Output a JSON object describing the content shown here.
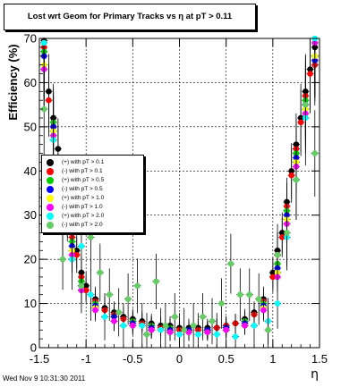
{
  "footer": "Wed Nov  9 10:31:30 2011",
  "chart_data": {
    "type": "scatter",
    "title": "Lost wrt Geom for Primary Tracks vs   η at pT > 0.11",
    "xlabel": "η",
    "ylabel": "Efficiency (%)",
    "xlim": [
      -1.5,
      1.5
    ],
    "ylim": [
      0,
      70
    ],
    "xticks": [
      "-1.5",
      "-1",
      "-0.5",
      "0",
      "0.5",
      "1",
      "1.5"
    ],
    "yticks": [
      "0",
      "10",
      "20",
      "30",
      "40",
      "50",
      "60",
      "70"
    ],
    "grid": true,
    "legend_position": "center-left",
    "series": [
      {
        "name": "(+) with pT > 0.1",
        "color": "#000000",
        "x": [
          -1.45,
          -1.4,
          -1.35,
          -1.3,
          -1.25,
          -1.2,
          -1.15,
          -1.1,
          -1.05,
          -1.0,
          -0.9,
          -0.8,
          -0.7,
          -0.6,
          -0.5,
          -0.4,
          -0.3,
          -0.2,
          -0.1,
          0.0,
          0.1,
          0.2,
          0.3,
          0.4,
          0.5,
          0.6,
          0.7,
          0.8,
          0.9,
          1.0,
          1.05,
          1.1,
          1.15,
          1.2,
          1.25,
          1.3,
          1.35,
          1.4,
          1.45
        ],
        "y": [
          69.5,
          58,
          52,
          45,
          35,
          30,
          26,
          22,
          17,
          14,
          11,
          9,
          8,
          7,
          6.5,
          6,
          5.5,
          5,
          5,
          4.5,
          4.5,
          4.5,
          4.5,
          4.5,
          5,
          5.5,
          6.5,
          8,
          11,
          17,
          22,
          26,
          33,
          40,
          46,
          52,
          58,
          63,
          68
        ]
      },
      {
        "name": "(-) with pT > 0.1",
        "color": "#ff0000",
        "x": [
          -1.45,
          -1.4,
          -1.35,
          -1.3,
          -1.25,
          -1.2,
          -1.15,
          -1.1,
          -1.05,
          -1.0,
          -0.9,
          -0.8,
          -0.7,
          -0.6,
          -0.5,
          -0.4,
          -0.3,
          -0.2,
          -0.1,
          0.0,
          0.1,
          0.2,
          0.3,
          0.4,
          0.5,
          0.6,
          0.7,
          0.8,
          0.9,
          1.0,
          1.05,
          1.1,
          1.15,
          1.2,
          1.25,
          1.3,
          1.35,
          1.4,
          1.45
        ],
        "y": [
          68,
          56,
          50,
          43,
          34,
          29,
          25,
          21,
          16,
          13,
          10.5,
          8.5,
          7.5,
          6.5,
          6,
          5.5,
          5,
          4.5,
          4.5,
          4,
          4,
          4,
          4,
          4.5,
          5,
          5.5,
          6,
          7.5,
          10.5,
          16,
          21,
          25,
          32,
          39,
          45,
          51,
          57,
          62,
          64
        ]
      },
      {
        "name": "(+) with pT > 0.5",
        "color": "#00cc00",
        "x": [
          -1.45,
          -1.35,
          -1.25,
          -1.15,
          -1.05,
          -0.9,
          -0.7,
          -0.5,
          -0.3,
          -0.1,
          0.1,
          0.3,
          0.5,
          0.7,
          0.9,
          1.05,
          1.15,
          1.25,
          1.35,
          1.45
        ],
        "y": [
          67,
          51,
          33,
          24,
          15,
          10,
          7,
          6,
          5,
          4.5,
          4,
          4,
          4.5,
          6,
          10,
          19,
          31,
          44,
          56,
          66
        ]
      },
      {
        "name": "(-) with pT > 0.5",
        "color": "#0000ff",
        "x": [
          -1.45,
          -1.35,
          -1.25,
          -1.15,
          -1.05,
          -0.9,
          -0.7,
          -0.5,
          -0.3,
          -0.1,
          0.1,
          0.3,
          0.5,
          0.7,
          0.9,
          1.05,
          1.15,
          1.25,
          1.35,
          1.45
        ],
        "y": [
          66,
          50,
          32,
          23,
          14,
          9.5,
          7,
          5.5,
          4.5,
          4,
          4,
          4,
          4.5,
          5.5,
          9.5,
          18,
          30,
          43,
          55,
          65
        ]
      },
      {
        "name": "(+) with pT > 1.0",
        "color": "#ffff00",
        "x": [
          -1.45,
          -1.35,
          -1.25,
          -1.15,
          -1.05,
          -0.9,
          -0.7,
          -0.5,
          -0.3,
          -0.1,
          0.1,
          0.3,
          0.5,
          0.7,
          0.9,
          1.05,
          1.15,
          1.25,
          1.35,
          1.45
        ],
        "y": [
          64,
          49,
          31,
          22,
          13,
          9,
          6,
          5,
          4,
          3.5,
          3.5,
          3.5,
          4,
          5,
          9,
          17,
          29,
          42,
          54,
          66
        ]
      },
      {
        "name": "(-) with pT > 1.0",
        "color": "#ff00ff",
        "x": [
          -1.45,
          -1.35,
          -1.25,
          -1.15,
          -1.05,
          -0.9,
          -0.7,
          -0.5,
          -0.3,
          -0.1,
          0.1,
          0.3,
          0.5,
          0.7,
          0.9,
          1.05,
          1.15,
          1.25,
          1.35,
          1.45
        ],
        "y": [
          63,
          48,
          30,
          21,
          13,
          8.5,
          6,
          5,
          4,
          3.5,
          3.5,
          3.5,
          4,
          5,
          8.5,
          16,
          28,
          41,
          53,
          69
        ]
      },
      {
        "name": "(+) with pT > 2.0",
        "color": "#00ffff",
        "x": [
          -1.45,
          -1.35,
          -1.25,
          -1.15,
          -1.05,
          -0.95,
          -0.8,
          -0.6,
          -0.4,
          -0.2,
          0.0,
          0.2,
          0.4,
          0.6,
          0.8,
          0.95,
          1.05,
          1.15,
          1.25,
          1.35,
          1.45
        ],
        "y": [
          69,
          47,
          28,
          20,
          23,
          12,
          7,
          5,
          5,
          4,
          3,
          3,
          3,
          2.5,
          5,
          6,
          10,
          25,
          38,
          52,
          70
        ]
      },
      {
        "name": "(-) with pT > 2.0",
        "color": "#66cc66",
        "x": [
          -1.45,
          -1.35,
          -1.25,
          -1.15,
          -1.05,
          -0.95,
          -0.85,
          -0.75,
          -0.65,
          -0.55,
          -0.45,
          -0.35,
          -0.25,
          -0.15,
          -0.05,
          0.05,
          0.15,
          0.25,
          0.35,
          0.45,
          0.55,
          0.65,
          0.75,
          0.85,
          0.95,
          1.05,
          1.15,
          1.25,
          1.35,
          1.45
        ],
        "y": [
          54,
          42,
          20,
          27,
          14,
          25,
          17,
          12,
          8,
          11,
          14,
          3,
          15,
          5,
          7,
          4,
          5,
          7,
          6,
          10,
          19,
          12,
          12,
          11,
          4,
          21,
          26,
          38,
          55,
          44
        ]
      }
    ]
  }
}
